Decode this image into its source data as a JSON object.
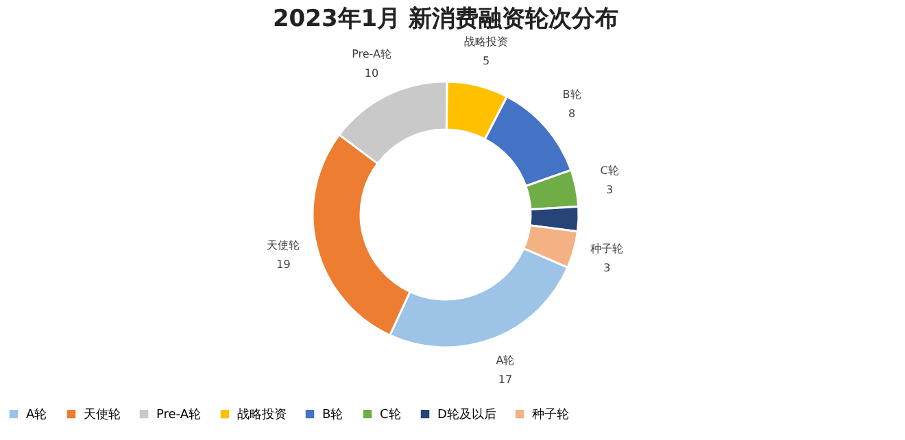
{
  "chart_data": {
    "type": "donut",
    "title": "2023年1月 新消费融资轮次分布",
    "categories": [
      "A轮",
      "天使轮",
      "Pre-A轮",
      "战略投资",
      "B轮",
      "C轮",
      "D轮及以后",
      "种子轮"
    ],
    "values": [
      17,
      19,
      10,
      5,
      8,
      3,
      2,
      3
    ],
    "value_labels": [
      "17",
      "19",
      "10",
      "5",
      "8",
      "3",
      null,
      "3"
    ],
    "colors": [
      "#9dc3e6",
      "#ed7d31",
      "#c9c9c9",
      "#ffc000",
      "#4472c4",
      "#70ad47",
      "#264478",
      "#f4b183"
    ],
    "legend": "bottom"
  }
}
